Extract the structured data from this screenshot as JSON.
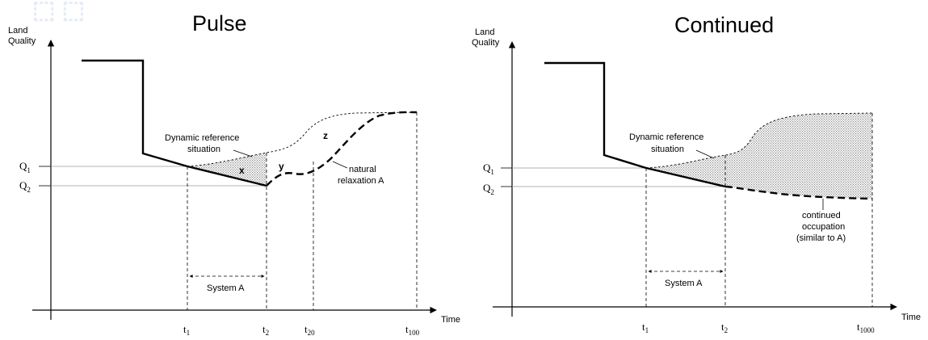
{
  "panels": [
    {
      "title": "Pulse",
      "y_axis_label": [
        "Land",
        "Quality"
      ],
      "x_axis_label": "Time",
      "q1": {
        "main": "Q",
        "sub": "1"
      },
      "q2": {
        "main": "Q",
        "sub": "2"
      },
      "ticks": [
        {
          "main": "t",
          "sub": "1"
        },
        {
          "main": "t",
          "sub": "2"
        },
        {
          "main": "t",
          "sub": "20"
        },
        {
          "main": "t",
          "sub": "100"
        }
      ],
      "reference_label": [
        "Dynamic reference",
        "situation"
      ],
      "relaxation_label": [
        "natural",
        "relaxation A"
      ],
      "system_label": "System A",
      "zones": [
        "x",
        "y",
        "z"
      ]
    },
    {
      "title": "Continued",
      "y_axis_label": [
        "Land",
        "Quality"
      ],
      "x_axis_label": "Time",
      "q1": {
        "main": "Q",
        "sub": "1"
      },
      "q2": {
        "main": "Q",
        "sub": "2"
      },
      "ticks": [
        {
          "main": "t",
          "sub": "1"
        },
        {
          "main": "t",
          "sub": "2"
        },
        {
          "main": "t",
          "sub": "1000"
        }
      ],
      "reference_label": [
        "Dynamic reference",
        "situation"
      ],
      "occupation_label": [
        "continued",
        "occupation",
        "(similar to A)"
      ],
      "system_label": "System A"
    }
  ]
}
